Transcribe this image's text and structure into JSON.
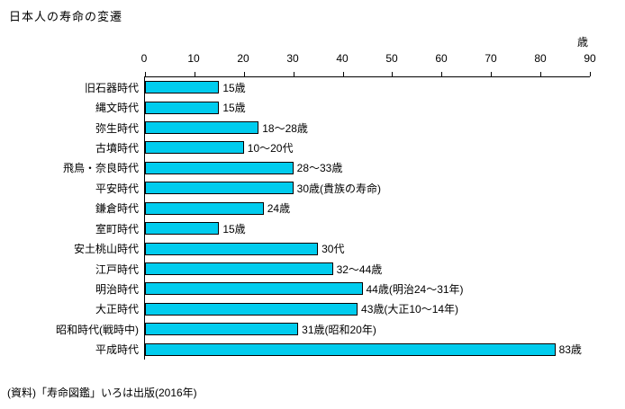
{
  "source_note": "(資料)「寿命図鑑」いろは出版(2016年)",
  "chart_data": {
    "type": "bar",
    "orientation": "horizontal",
    "title": "日本人の寿命の変遷",
    "unit": "歳",
    "xlim": [
      0,
      90
    ],
    "x_ticks": [
      0,
      10,
      20,
      30,
      40,
      50,
      60,
      70,
      80,
      90
    ],
    "grid": false,
    "legend": "none",
    "bar_color": "#00CCEE",
    "bar_border_color": "#000000",
    "categories": [
      "旧石器時代",
      "縄文時代",
      "弥生時代",
      "古墳時代",
      "飛鳥・奈良時代",
      "平安時代",
      "鎌倉時代",
      "室町時代",
      "安土桃山時代",
      "江戸時代",
      "明治時代",
      "大正時代",
      "昭和時代(戦時中)",
      "平成時代"
    ],
    "values": [
      15,
      15,
      23,
      20,
      30,
      30,
      24,
      15,
      35,
      38,
      44,
      43,
      31,
      83
    ],
    "value_labels": [
      "15歳",
      "15歳",
      "18～28歳",
      "10～20代",
      "28～33歳",
      "30歳(貴族の寿命)",
      "24歳",
      "15歳",
      "30代",
      "32～44歳",
      "44歳(明治24～31年)",
      "43歳(大正10～14年)",
      "31歳(昭和20年)",
      "83歳"
    ]
  }
}
